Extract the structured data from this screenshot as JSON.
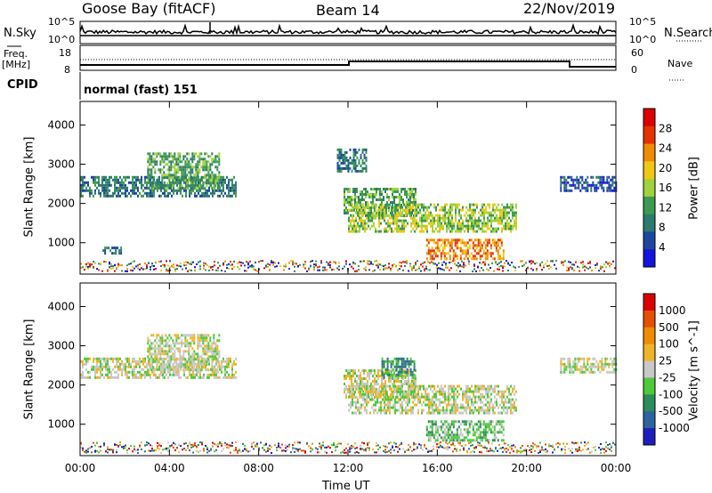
{
  "header": {
    "station": "Goose Bay (fitACF)",
    "beam": "Beam 14",
    "date": "22/Nov/2019"
  },
  "status_panels": {
    "nsky_label": "N.Sky",
    "nsearch_label": "N.Search",
    "noise_ticks": [
      "10^5",
      "10^0"
    ],
    "freq_label": "Freq.",
    "freq_unit": "[MHz]",
    "freq_ticks": [
      "18",
      "8"
    ],
    "nave_label": "Nave",
    "nave_ticks": [
      "60",
      "0"
    ],
    "cpid_label": "CPID",
    "cpid_value": "normal (fast) 151"
  },
  "colors": {
    "power_scale": [
      "#1414dc",
      "#1e46a0",
      "#2d7a6e",
      "#3c9a50",
      "#a0d23c",
      "#f0c814",
      "#f08c00",
      "#e63200",
      "#dc0000"
    ],
    "velocity_scale": [
      "#1e1ebe",
      "#2d64a0",
      "#2d8c5a",
      "#50c83c",
      "#c8c8c8",
      "#f0b428",
      "#f08c00",
      "#e65000",
      "#dc0000"
    ]
  },
  "chart_data": [
    {
      "type": "heatmap",
      "name": "power",
      "ylabel": "Slant Range [km]",
      "xlabel": "Time UT",
      "x_ticks": [
        "00:00",
        "04:00",
        "08:00",
        "12:00",
        "16:00",
        "20:00",
        "00:00"
      ],
      "y_ticks": [
        1000,
        2000,
        3000,
        4000
      ],
      "ylim": [
        200,
        4600
      ],
      "xlim_hours": [
        0,
        24
      ],
      "colorbar_label": "Power [dB]",
      "colorbar_ticks": [
        4,
        8,
        12,
        16,
        20,
        24,
        28
      ],
      "regions": [
        {
          "t": [
            0.0,
            7.0
          ],
          "r": [
            2200,
            2700
          ],
          "level": 2
        },
        {
          "t": [
            3.0,
            6.2
          ],
          "r": [
            2400,
            3300
          ],
          "level": 3
        },
        {
          "t": [
            1.0,
            1.8
          ],
          "r": [
            700,
            900
          ],
          "level": 2
        },
        {
          "t": [
            11.8,
            15.0
          ],
          "r": [
            1700,
            2400
          ],
          "level": 3
        },
        {
          "t": [
            12.0,
            19.5
          ],
          "r": [
            1300,
            2000
          ],
          "level": 4
        },
        {
          "t": [
            15.5,
            19.0
          ],
          "r": [
            600,
            1100
          ],
          "level": 6
        },
        {
          "t": [
            11.5,
            12.8
          ],
          "r": [
            2800,
            3400
          ],
          "level": 2
        },
        {
          "t": [
            21.5,
            24.0
          ],
          "r": [
            2300,
            2700
          ],
          "level": 1
        }
      ]
    },
    {
      "type": "heatmap",
      "name": "velocity",
      "ylabel": "Slant Range [km]",
      "xlabel": "Time UT",
      "x_ticks": [
        "00:00",
        "04:00",
        "08:00",
        "12:00",
        "16:00",
        "20:00",
        "00:00"
      ],
      "y_ticks": [
        1000,
        2000,
        3000,
        4000
      ],
      "ylim": [
        200,
        4600
      ],
      "xlim_hours": [
        0,
        24
      ],
      "colorbar_label": "Velocity [m s^-1]",
      "colorbar_ticks": [
        "1000",
        "500",
        "100",
        "25",
        "-25",
        "-100",
        "-500",
        "-1000"
      ],
      "regions": [
        {
          "t": [
            0.0,
            7.0
          ],
          "r": [
            2200,
            2700
          ],
          "level": 4
        },
        {
          "t": [
            3.0,
            6.2
          ],
          "r": [
            2400,
            3300
          ],
          "level": 4
        },
        {
          "t": [
            11.8,
            15.0
          ],
          "r": [
            1700,
            2400
          ],
          "level": 4
        },
        {
          "t": [
            12.0,
            19.5
          ],
          "r": [
            1300,
            2000
          ],
          "level": 4
        },
        {
          "t": [
            15.5,
            19.0
          ],
          "r": [
            600,
            1100
          ],
          "level": 3
        },
        {
          "t": [
            13.5,
            15.0
          ],
          "r": [
            2200,
            2700
          ],
          "level": 2
        },
        {
          "t": [
            21.5,
            24.0
          ],
          "r": [
            2300,
            2700
          ],
          "level": 4
        }
      ]
    }
  ]
}
